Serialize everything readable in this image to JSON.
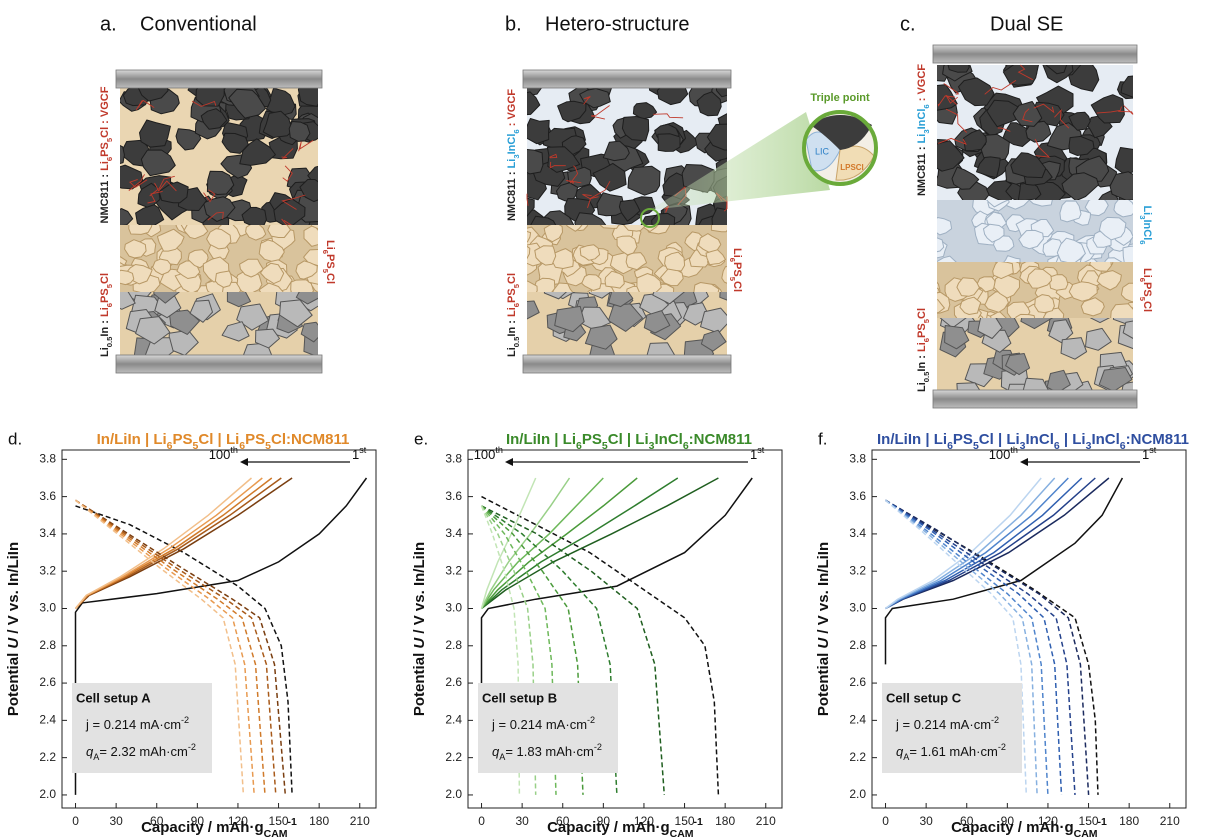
{
  "illustrations": [
    {
      "panel": "a.",
      "title": "Conventional",
      "left_labels": [
        [
          {
            "text": "NMC811 : ",
            "color": "#222"
          },
          {
            "text": "Li6PS5Cl",
            "color": "#c0392b"
          },
          {
            "text": " : VGCF",
            "color": "#c0392b"
          }
        ],
        [
          {
            "text": "Li0.5In : ",
            "color": "#222"
          },
          {
            "text": "Li6PS5Cl",
            "color": "#c0392b"
          }
        ]
      ],
      "right_labels": [
        [
          {
            "text": "Li6PS5Cl",
            "color": "#c0392b"
          }
        ]
      ]
    },
    {
      "panel": "b.",
      "title": "Hetero-structure",
      "left_labels": [
        [
          {
            "text": "NMC811 : ",
            "color": "#222"
          },
          {
            "text": "Li3InCl6",
            "color": "#2a9fd6"
          },
          {
            "text": " : VGCF",
            "color": "#c0392b"
          }
        ],
        [
          {
            "text": "Li0.5In : ",
            "color": "#222"
          },
          {
            "text": "Li6PS5Cl",
            "color": "#c0392b"
          }
        ]
      ],
      "right_labels": [
        [
          {
            "text": "Li6PS5Cl",
            "color": "#c0392b"
          }
        ]
      ],
      "inset": {
        "title": "Triple point",
        "left": "LIC",
        "right": "LPSCl"
      }
    },
    {
      "panel": "c.",
      "title": "Dual SE",
      "left_labels": [
        [
          {
            "text": "NMC811 : ",
            "color": "#222"
          },
          {
            "text": "Li3InCl6",
            "color": "#2a9fd6"
          },
          {
            "text": " : VGCF",
            "color": "#c0392b"
          }
        ],
        [
          {
            "text": "Li0.5In : ",
            "color": "#222"
          },
          {
            "text": "Li6PS5Cl",
            "color": "#c0392b"
          }
        ]
      ],
      "right_labels": [
        [
          {
            "text": "Li3InCl6",
            "color": "#2a9fd6"
          }
        ],
        [
          {
            "text": "Li6PS5Cl",
            "color": "#c0392b"
          }
        ]
      ]
    }
  ],
  "chart_data": [
    {
      "type": "line",
      "panel": "d.",
      "title": "In/LiIn | Li6PS5Cl | Li6PS5Cl:NCM811",
      "title_color": "#e0892a",
      "xlabel": "Capacity / mAh·gCAM-1",
      "ylabel": "Potential U / V vs. In/LiIn",
      "xlim": [
        -10,
        222
      ],
      "ylim": [
        1.93,
        3.85
      ],
      "xticks": [
        0,
        30,
        60,
        90,
        120,
        150,
        180,
        210
      ],
      "yticks": [
        {
          "value": 2,
          "label": "2.0"
        },
        2.2,
        2.4,
        2.6,
        2.8,
        {
          "value": 3,
          "label": "3.0"
        },
        3.2,
        3.4,
        3.6,
        3.8
      ],
      "arrow_labels": {
        "start": "1st",
        "end": "100th"
      },
      "box": [
        "Cell setup A",
        "j = 0.214 mA·cm-2",
        "qA= 2.32 mAh·cm-2"
      ],
      "curves": [
        {
          "color": "#111111",
          "dashed": false,
          "x": [
            0,
            0,
            5,
            60,
            120,
            150,
            180,
            200,
            215
          ],
          "y": [
            2.0,
            2.98,
            3.03,
            3.08,
            3.15,
            3.25,
            3.4,
            3.55,
            3.7
          ]
        },
        {
          "color": "#111111",
          "dashed": true,
          "x": [
            0,
            40,
            80,
            120,
            140,
            152,
            157,
            160
          ],
          "y": [
            3.55,
            3.45,
            3.3,
            3.12,
            3.0,
            2.8,
            2.5,
            2.0
          ]
        },
        {
          "color": "#7a3e10",
          "dashed": false,
          "x": [
            0,
            10,
            40,
            80,
            120,
            160
          ],
          "y": [
            3.0,
            3.07,
            3.17,
            3.32,
            3.5,
            3.7
          ]
        },
        {
          "color": "#a85a1a",
          "dashed": false,
          "x": [
            0,
            9,
            38,
            76,
            114,
            152
          ],
          "y": [
            3.0,
            3.07,
            3.17,
            3.32,
            3.5,
            3.7
          ]
        },
        {
          "color": "#d07a2a",
          "dashed": false,
          "x": [
            0,
            9,
            36,
            73,
            109,
            145
          ],
          "y": [
            3.0,
            3.07,
            3.17,
            3.32,
            3.5,
            3.7
          ]
        },
        {
          "color": "#e89a50",
          "dashed": false,
          "x": [
            0,
            8,
            35,
            69,
            104,
            138
          ],
          "y": [
            3.0,
            3.07,
            3.17,
            3.32,
            3.5,
            3.7
          ]
        },
        {
          "color": "#f2bf8a",
          "dashed": false,
          "x": [
            0,
            8,
            33,
            65,
            98,
            130
          ],
          "y": [
            3.0,
            3.07,
            3.17,
            3.32,
            3.5,
            3.7
          ]
        },
        {
          "color": "#7a3e10",
          "dashed": true,
          "x": [
            0,
            39,
            78,
            116,
            136,
            147,
            155
          ],
          "y": [
            3.58,
            3.4,
            3.22,
            3.05,
            2.95,
            2.7,
            2.0
          ]
        },
        {
          "color": "#a85a1a",
          "dashed": true,
          "x": [
            0,
            37,
            74,
            111,
            130,
            141,
            148
          ],
          "y": [
            3.58,
            3.4,
            3.22,
            3.05,
            2.95,
            2.7,
            2.0
          ]
        },
        {
          "color": "#d07a2a",
          "dashed": true,
          "x": [
            0,
            35,
            70,
            105,
            123,
            133,
            140
          ],
          "y": [
            3.58,
            3.4,
            3.22,
            3.05,
            2.95,
            2.7,
            2.0
          ]
        },
        {
          "color": "#e89a50",
          "dashed": true,
          "x": [
            0,
            33,
            66,
            99,
            116,
            125,
            132
          ],
          "y": [
            3.58,
            3.4,
            3.22,
            3.05,
            2.95,
            2.7,
            2.0
          ]
        },
        {
          "color": "#f2bf8a",
          "dashed": true,
          "x": [
            0,
            31,
            62,
            93,
            109,
            118,
            124
          ],
          "y": [
            3.58,
            3.4,
            3.22,
            3.05,
            2.95,
            2.7,
            2.0
          ]
        }
      ]
    },
    {
      "type": "line",
      "panel": "e.",
      "title": "In/LiIn | Li6PS5Cl | Li3InCl6:NCM811",
      "title_color": "#3a8a2a",
      "xlabel": "Capacity / mAh·gCAM-1",
      "ylabel": "Potential U / V vs. In/LiIn",
      "xlim": [
        -10,
        222
      ],
      "ylim": [
        1.93,
        3.85
      ],
      "xticks": [
        0,
        30,
        60,
        90,
        120,
        150,
        180,
        210
      ],
      "yticks": [
        {
          "value": 2,
          "label": "2.0"
        },
        2.2,
        2.4,
        2.6,
        2.8,
        {
          "value": 3,
          "label": "3.0"
        },
        3.2,
        3.4,
        3.6,
        3.8
      ],
      "arrow_labels": {
        "start": "1st",
        "end": "100th"
      },
      "box": [
        "Cell setup B",
        "j = 0.214 mA·cm-2",
        "qA= 1.83 mAh·cm-2"
      ],
      "curves": [
        {
          "color": "#111111",
          "dashed": false,
          "x": [
            0,
            0,
            5,
            40,
            100,
            150,
            180,
            200
          ],
          "y": [
            2.6,
            2.95,
            3.0,
            3.05,
            3.12,
            3.3,
            3.5,
            3.7
          ]
        },
        {
          "color": "#111111",
          "dashed": true,
          "x": [
            0,
            40,
            80,
            120,
            150,
            165,
            172,
            175
          ],
          "y": [
            3.6,
            3.45,
            3.3,
            3.1,
            2.95,
            2.8,
            2.5,
            2.0
          ]
        },
        {
          "color": "#1f5e1f",
          "dashed": false,
          "x": [
            0,
            18,
            53,
            96,
            137,
            175
          ],
          "y": [
            3.0,
            3.1,
            3.25,
            3.4,
            3.55,
            3.7
          ]
        },
        {
          "color": "#2e7d2e",
          "dashed": false,
          "x": [
            0,
            15,
            44,
            80,
            113,
            145
          ],
          "y": [
            3.0,
            3.1,
            3.25,
            3.4,
            3.55,
            3.7
          ]
        },
        {
          "color": "#4a9a3a",
          "dashed": false,
          "x": [
            0,
            12,
            35,
            63,
            90,
            115
          ],
          "y": [
            3.0,
            3.1,
            3.25,
            3.4,
            3.55,
            3.7
          ]
        },
        {
          "color": "#6db85a",
          "dashed": false,
          "x": [
            0,
            9,
            27,
            50,
            70,
            90
          ],
          "y": [
            3.0,
            3.1,
            3.25,
            3.4,
            3.55,
            3.7
          ]
        },
        {
          "color": "#99d088",
          "dashed": false,
          "x": [
            0,
            7,
            20,
            36,
            51,
            65
          ],
          "y": [
            3.0,
            3.1,
            3.25,
            3.4,
            3.55,
            3.7
          ]
        },
        {
          "color": "#c2e5b5",
          "dashed": false,
          "x": [
            0,
            4,
            12,
            22,
            31,
            40
          ],
          "y": [
            3.0,
            3.1,
            3.25,
            3.4,
            3.55,
            3.7
          ]
        },
        {
          "color": "#1f5e1f",
          "dashed": true,
          "x": [
            0,
            41,
            81,
            115,
            128,
            135
          ],
          "y": [
            3.55,
            3.4,
            3.2,
            3.0,
            2.7,
            2.0
          ]
        },
        {
          "color": "#2e7d2e",
          "dashed": true,
          "x": [
            0,
            30,
            60,
            85,
            95,
            100
          ],
          "y": [
            3.55,
            3.4,
            3.2,
            3.0,
            2.7,
            2.0
          ]
        },
        {
          "color": "#4a9a3a",
          "dashed": true,
          "x": [
            0,
            23,
            45,
            64,
            71,
            75
          ],
          "y": [
            3.55,
            3.4,
            3.2,
            3.0,
            2.7,
            2.0
          ]
        },
        {
          "color": "#6db85a",
          "dashed": true,
          "x": [
            0,
            17,
            33,
            47,
            52,
            55
          ],
          "y": [
            3.55,
            3.4,
            3.2,
            3.0,
            2.7,
            2.0
          ]
        },
        {
          "color": "#99d088",
          "dashed": true,
          "x": [
            0,
            12,
            24,
            34,
            38,
            40
          ],
          "y": [
            3.55,
            3.4,
            3.2,
            3.0,
            2.7,
            2.0
          ]
        },
        {
          "color": "#c2e5b5",
          "dashed": true,
          "x": [
            0,
            8,
            17,
            24,
            27,
            28
          ],
          "y": [
            3.55,
            3.4,
            3.2,
            3.0,
            2.7,
            2.0
          ]
        }
      ]
    },
    {
      "type": "line",
      "panel": "f.",
      "title": "In/LiIn | Li6PS5Cl | Li3InCl6 | Li3InCl6:NCM811",
      "title_color": "#2f4fa0",
      "xlabel": "Capacity / mAh·gCAM-1",
      "ylabel": "Potential U / V vs. In/LiIn",
      "xlim": [
        -10,
        222
      ],
      "ylim": [
        1.93,
        3.85
      ],
      "xticks": [
        0,
        30,
        60,
        90,
        120,
        150,
        180,
        210
      ],
      "yticks": [
        {
          "value": 2,
          "label": "2.0"
        },
        2.2,
        2.4,
        2.6,
        2.8,
        {
          "value": 3,
          "label": "3.0"
        },
        3.2,
        3.4,
        3.6,
        3.8
      ],
      "arrow_labels": {
        "start": "1st",
        "end": "100th"
      },
      "box": [
        "Cell setup C",
        "j = 0.214 mA·cm-2",
        "qA= 1.61 mAh·cm-2"
      ],
      "curves": [
        {
          "color": "#111111",
          "dashed": false,
          "x": [
            0,
            0,
            5,
            50,
            100,
            140,
            160,
            175
          ],
          "y": [
            2.7,
            2.95,
            3.0,
            3.05,
            3.15,
            3.35,
            3.5,
            3.7
          ]
        },
        {
          "color": "#111111",
          "dashed": true,
          "x": [
            0,
            30,
            70,
            110,
            140,
            150,
            155,
            157
          ],
          "y": [
            3.58,
            3.45,
            3.28,
            3.1,
            2.95,
            2.7,
            2.4,
            2.0
          ]
        },
        {
          "color": "#1b2a5e",
          "dashed": false,
          "x": [
            0,
            13,
            50,
            91,
            132,
            165
          ],
          "y": [
            3.0,
            3.05,
            3.15,
            3.3,
            3.5,
            3.7
          ]
        },
        {
          "color": "#23408a",
          "dashed": false,
          "x": [
            0,
            12,
            47,
            85,
            124,
            155
          ],
          "y": [
            3.0,
            3.05,
            3.15,
            3.3,
            3.5,
            3.7
          ]
        },
        {
          "color": "#2f5fb0",
          "dashed": false,
          "x": [
            0,
            12,
            44,
            80,
            116,
            145
          ],
          "y": [
            3.0,
            3.05,
            3.15,
            3.3,
            3.5,
            3.7
          ]
        },
        {
          "color": "#4f84cc",
          "dashed": false,
          "x": [
            0,
            11,
            41,
            74,
            108,
            135
          ],
          "y": [
            3.0,
            3.05,
            3.15,
            3.3,
            3.5,
            3.7
          ]
        },
        {
          "color": "#86b0e0",
          "dashed": false,
          "x": [
            0,
            10,
            38,
            69,
            100,
            125
          ],
          "y": [
            3.0,
            3.05,
            3.15,
            3.3,
            3.5,
            3.7
          ]
        },
        {
          "color": "#bcd5f0",
          "dashed": false,
          "x": [
            0,
            9,
            35,
            63,
            92,
            115
          ],
          "y": [
            3.0,
            3.05,
            3.15,
            3.3,
            3.5,
            3.7
          ]
        },
        {
          "color": "#1b2a5e",
          "dashed": true,
          "x": [
            0,
            38,
            75,
            113,
            135,
            144,
            150
          ],
          "y": [
            3.58,
            3.42,
            3.25,
            3.08,
            2.95,
            2.7,
            2.0
          ]
        },
        {
          "color": "#23408a",
          "dashed": true,
          "x": [
            0,
            35,
            70,
            105,
            126,
            134,
            140
          ],
          "y": [
            3.58,
            3.42,
            3.25,
            3.08,
            2.95,
            2.7,
            2.0
          ]
        },
        {
          "color": "#2f5fb0",
          "dashed": true,
          "x": [
            0,
            33,
            65,
            98,
            117,
            125,
            130
          ],
          "y": [
            3.58,
            3.42,
            3.25,
            3.08,
            2.95,
            2.7,
            2.0
          ]
        },
        {
          "color": "#4f84cc",
          "dashed": true,
          "x": [
            0,
            30,
            60,
            90,
            108,
            115,
            120
          ],
          "y": [
            3.58,
            3.42,
            3.25,
            3.08,
            2.95,
            2.7,
            2.0
          ]
        },
        {
          "color": "#86b0e0",
          "dashed": true,
          "x": [
            0,
            28,
            56,
            84,
            101,
            108,
            112
          ],
          "y": [
            3.58,
            3.42,
            3.25,
            3.08,
            2.95,
            2.7,
            2.0
          ]
        },
        {
          "color": "#bcd5f0",
          "dashed": true,
          "x": [
            0,
            26,
            52,
            78,
            94,
            100,
            104
          ],
          "y": [
            3.58,
            3.42,
            3.25,
            3.08,
            2.95,
            2.7,
            2.0
          ]
        }
      ]
    }
  ]
}
